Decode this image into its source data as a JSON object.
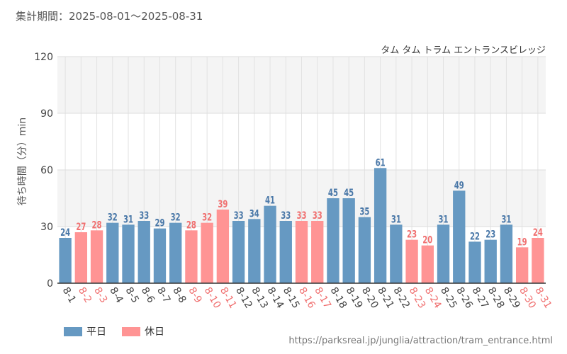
{
  "header": {
    "period_label": "集計期間：2025-08-01～2025-08-31",
    "attraction_name": "タム タム トラム エントランスビレッジ"
  },
  "footer": {
    "source_url": "https://parksreal.jp/junglia/attraction/tram_entrance.html"
  },
  "legend": {
    "weekday_label": "平日",
    "holiday_label": "休日"
  },
  "colors": {
    "weekday": "#6699c2",
    "holiday": "#ff9494",
    "weekday_text": "#4a78a8",
    "holiday_text": "#f07070",
    "band": "#f4f4f4",
    "grid": "#e2e2e2"
  },
  "chart_data": {
    "type": "bar",
    "title": "タム タム トラム エントランスビレッジ",
    "xlabel": "",
    "ylabel": "待ち時間（分）min",
    "ylim": [
      0,
      120
    ],
    "yticks": [
      0,
      30,
      60,
      90,
      120
    ],
    "grid": true,
    "legend_position": "bottom-left",
    "categories": [
      "8-1",
      "8-2",
      "8-3",
      "8-4",
      "8-5",
      "8-6",
      "8-7",
      "8-8",
      "8-9",
      "8-10",
      "8-11",
      "8-12",
      "8-13",
      "8-14",
      "8-15",
      "8-16",
      "8-17",
      "8-18",
      "8-19",
      "8-20",
      "8-21",
      "8-22",
      "8-23",
      "8-24",
      "8-25",
      "8-26",
      "8-27",
      "8-28",
      "8-29",
      "8-30",
      "8-31"
    ],
    "values": [
      24,
      27,
      28,
      32,
      31,
      33,
      29,
      32,
      28,
      32,
      39,
      33,
      34,
      41,
      33,
      33,
      33,
      45,
      45,
      35,
      61,
      31,
      23,
      20,
      31,
      49,
      22,
      23,
      31,
      19,
      24
    ],
    "day_type": [
      "weekday",
      "holiday",
      "holiday",
      "weekday",
      "weekday",
      "weekday",
      "weekday",
      "weekday",
      "holiday",
      "holiday",
      "holiday",
      "weekday",
      "weekday",
      "weekday",
      "weekday",
      "holiday",
      "holiday",
      "weekday",
      "weekday",
      "weekday",
      "weekday",
      "weekday",
      "holiday",
      "holiday",
      "weekday",
      "weekday",
      "weekday",
      "weekday",
      "weekday",
      "holiday",
      "holiday"
    ],
    "series": [
      {
        "name": "平日",
        "day_type": "weekday"
      },
      {
        "name": "休日",
        "day_type": "holiday"
      }
    ]
  }
}
